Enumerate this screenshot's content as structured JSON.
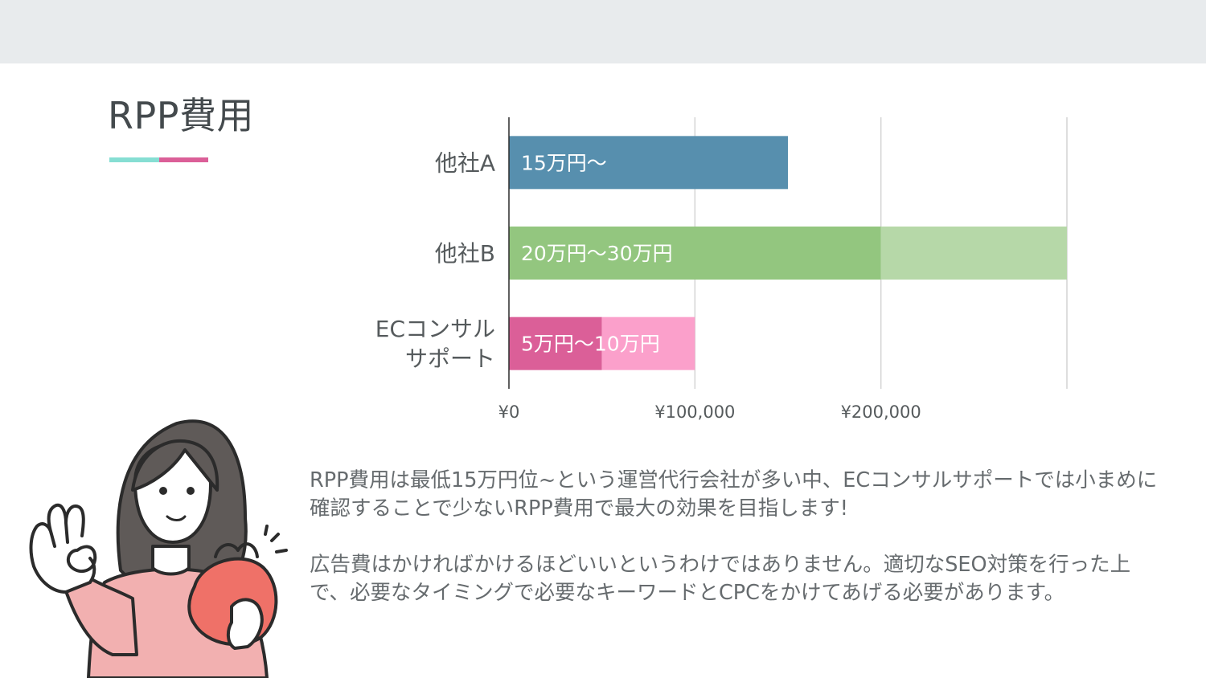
{
  "slide": {
    "title": "RPP費用",
    "accent_colors": [
      "#86ded3",
      "#db5f98"
    ],
    "paragraphs": [
      "RPP費用は最低15万円位~という運営代行会社が多い中、ECコンサルサポートでは小まめに確認することで少ないRPP費用で最大の効果を目指します!",
      "広告費はかければかけるほどいいというわけではありません。適切なSEO対策を行った上で、必要なタイミングで必要なキーワードとCPCをかけてあげる必要があります。"
    ]
  },
  "illustration": {
    "icon": "woman-holding-coin-purse-ok-gesture"
  },
  "chart_data": {
    "type": "bar",
    "orientation": "horizontal",
    "categories": [
      "他社A",
      "他社B",
      "ECコンサル\nサポート"
    ],
    "x_ticks": [
      {
        "value": 0,
        "label": "¥0"
      },
      {
        "value": 100000,
        "label": "¥100,000"
      },
      {
        "value": 200000,
        "label": "¥200,000"
      }
    ],
    "xlim": [
      0,
      300000
    ],
    "grid": true,
    "series": [
      {
        "values": [
          150000,
          200000,
          50000
        ],
        "colors": [
          "#578fae",
          "#93c67f",
          "#db5f98"
        ]
      },
      {
        "values": [
          0,
          100000,
          50000
        ],
        "colors": [
          "#578fae",
          "#b6d8a8",
          "#fba0cb"
        ]
      }
    ],
    "data_labels": [
      "15万円〜",
      "20万円〜30万円",
      "5万円〜10万円"
    ]
  }
}
